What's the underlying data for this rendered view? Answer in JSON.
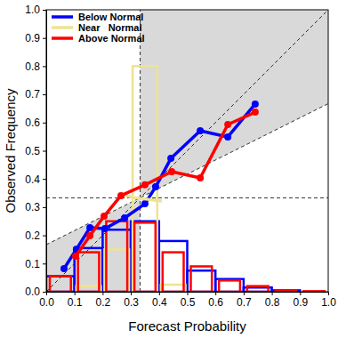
{
  "chart_data": {
    "type": "line",
    "x_label": "Forecast Probability",
    "y_label": "Observed Frequency",
    "xlim": [
      0,
      1
    ],
    "ylim": [
      0,
      1
    ],
    "xticks": [
      {
        "value": 0,
        "label": "0.0"
      },
      0.1,
      0.2,
      0.3,
      0.4,
      0.5,
      0.6,
      0.7,
      0.8,
      0.9,
      {
        "value": 1,
        "label": "1.0"
      }
    ],
    "yticks": [
      {
        "value": 0,
        "label": "0.0"
      },
      0.1,
      0.2,
      0.3,
      0.4,
      0.5,
      0.6,
      0.7,
      0.8,
      0.9,
      {
        "value": 1,
        "label": "1.0"
      }
    ],
    "grid": false,
    "legend": "upper left",
    "bins": [
      0,
      0.1,
      0.2,
      0.3,
      0.4,
      0.5,
      0.6,
      0.7,
      0.8,
      0.9,
      1.0
    ],
    "climatology": 0.333,
    "no_skill_line": {
      "x": [
        0,
        1
      ],
      "y": [
        0.167,
        0.667
      ]
    },
    "perfect_line": {
      "x": [
        0,
        1
      ],
      "y": [
        0,
        1
      ]
    },
    "series": [
      {
        "name": "Below Normal",
        "color": "#0000ff",
        "marker": "circle",
        "x": [
          0.063,
          0.107,
          0.155,
          0.208,
          0.278,
          0.35,
          0.388,
          0.442,
          0.546,
          0.644,
          0.741
        ],
        "values": [
          0.082,
          0.151,
          0.227,
          0.224,
          0.262,
          0.312,
          0.372,
          0.473,
          0.571,
          0.549,
          0.666
        ],
        "frequency": [
          0.055,
          0.155,
          0.22,
          0.25,
          0.18,
          0.075,
          0.045,
          0.015,
          0.005,
          0
        ]
      },
      {
        "name": "Near   Normal",
        "color": "#eee38f",
        "x": [
          0.262,
          0.309,
          0.41
        ],
        "values": [
          0.347,
          0.334,
          0.322
        ],
        "frequency": [
          0,
          0.02,
          0.15,
          0.8,
          0.025,
          0,
          0,
          0,
          0,
          0
        ]
      },
      {
        "name": "Above Normal",
        "color": "#ff0000",
        "marker": "circle",
        "x": [
          0.104,
          0.155,
          0.205,
          0.265,
          0.35,
          0.445,
          0.546,
          0.644,
          0.741
        ],
        "values": [
          0.126,
          0.199,
          0.268,
          0.341,
          0.379,
          0.426,
          0.404,
          0.593,
          0.637
        ],
        "frequency": [
          0.055,
          0.14,
          0.25,
          0.245,
          0.14,
          0.09,
          0.04,
          0.02,
          0.005,
          0.002
        ]
      }
    ]
  }
}
